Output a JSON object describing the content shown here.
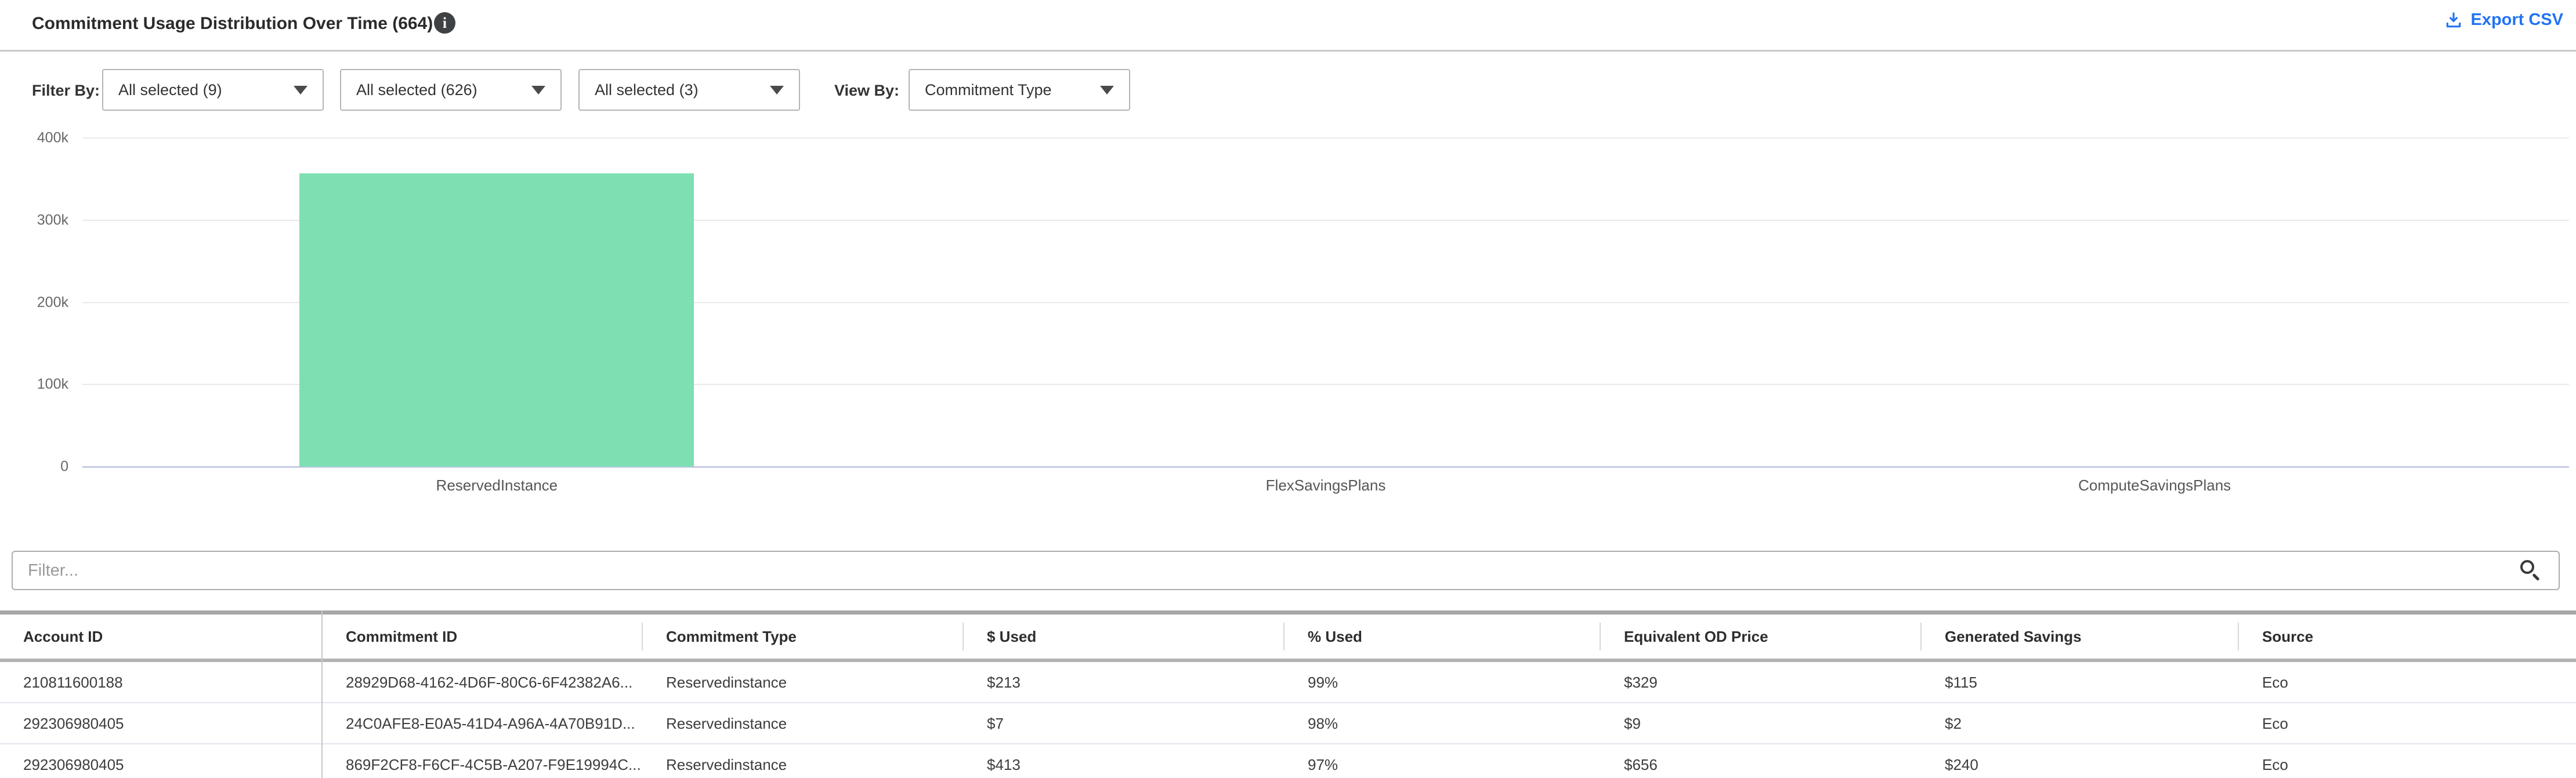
{
  "header": {
    "title": "Commitment Usage Distribution Over Time (664)",
    "info_icon": "i",
    "export_csv_label": "Export CSV",
    "accent_blue": "#2273f2"
  },
  "filters": {
    "filter_by_label": "Filter By:",
    "view_by_label": "View By:",
    "dropdowns": [
      {
        "value": "All selected (9)"
      },
      {
        "value": "All selected (626)"
      },
      {
        "value": "All selected (3)"
      }
    ],
    "view_by_dropdown": {
      "value": "Commitment Type"
    }
  },
  "chart_data": {
    "type": "bar",
    "categories": [
      "ReservedInstance",
      "FlexSavingsPlans",
      "ComputeSavingsPlans"
    ],
    "values": [
      357000,
      0,
      0
    ],
    "title": "",
    "xlabel": "",
    "ylabel": "",
    "ylim": [
      0,
      400000
    ],
    "ytick_labels": [
      "400k",
      "300k",
      "200k",
      "100k",
      "0"
    ],
    "ytick_values": [
      400000,
      300000,
      200000,
      100000,
      0
    ],
    "grid": true,
    "legend": "none",
    "bar_color": "#7EDFB3"
  },
  "table": {
    "filter_placeholder": "Filter...",
    "search_icon": "magnifier",
    "columns": [
      "Account ID",
      "Commitment ID",
      "Commitment Type",
      "$ Used",
      "% Used",
      "Equivalent OD Price",
      "Generated Savings",
      "Source"
    ],
    "rows": [
      [
        "210811600188",
        "28929D68-4162-4D6F-80C6-6F42382A6...",
        "Reservedinstance",
        "$213",
        "99%",
        "$329",
        "$115",
        "Eco"
      ],
      [
        "292306980405",
        "24C0AFE8-E0A5-41D4-A96A-4A70B91D...",
        "Reservedinstance",
        "$7",
        "98%",
        "$9",
        "$2",
        "Eco"
      ],
      [
        "292306980405",
        "869F2CF8-F6CF-4C5B-A207-F9E19994C...",
        "Reservedinstance",
        "$413",
        "97%",
        "$656",
        "$240",
        "Eco"
      ]
    ]
  }
}
